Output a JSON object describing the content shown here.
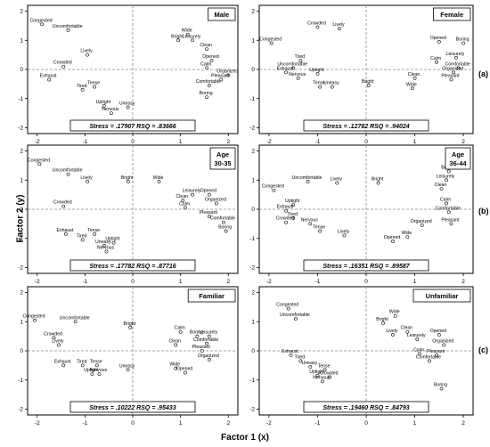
{
  "axes": {
    "xlabel": "Factor 1 (x)",
    "ylabel": "Factor 2 (y)"
  },
  "row_labels": [
    "(a)",
    "(b)",
    "(c)"
  ],
  "chart_data": [
    {
      "type": "scatter",
      "title": "Male",
      "stress_text": "Stress = .17907   RSQ = .83666",
      "xlim": [
        -2.2,
        2.2
      ],
      "ylim": [
        -2.2,
        2.2
      ],
      "xticks": [
        -2,
        -1,
        0,
        1,
        2
      ],
      "yticks": [
        -2,
        -1,
        0,
        1,
        2
      ],
      "points": [
        {
          "label": "Congested",
          "x": -1.9,
          "y": 1.55
        },
        {
          "label": "Uncomfortable",
          "x": -1.35,
          "y": 1.35
        },
        {
          "label": "Wide",
          "x": 1.15,
          "y": 1.2
        },
        {
          "label": "Leisurely",
          "x": 1.25,
          "y": 1.0
        },
        {
          "label": "Bright",
          "x": 0.95,
          "y": 1.0
        },
        {
          "label": "Clean",
          "x": 1.55,
          "y": 0.7
        },
        {
          "label": "Lively",
          "x": -0.95,
          "y": 0.5
        },
        {
          "label": "Opened",
          "x": 1.65,
          "y": 0.3
        },
        {
          "label": "Calm",
          "x": 1.55,
          "y": 0.05
        },
        {
          "label": "Crowded",
          "x": -1.45,
          "y": 0.1
        },
        {
          "label": "Organized",
          "x": 2.0,
          "y": -0.2
        },
        {
          "label": "Pleasant",
          "x": 1.85,
          "y": -0.35
        },
        {
          "label": "Exhaust",
          "x": -1.75,
          "y": -0.35
        },
        {
          "label": "Comfortable",
          "x": 1.6,
          "y": -0.55
        },
        {
          "label": "Tired",
          "x": -1.05,
          "y": -0.7
        },
        {
          "label": "Tense",
          "x": -0.8,
          "y": -0.6
        },
        {
          "label": "Boring",
          "x": 1.55,
          "y": -0.95
        },
        {
          "label": "Uptight",
          "x": -0.6,
          "y": -1.25
        },
        {
          "label": "Uneasy",
          "x": -0.1,
          "y": -1.3
        },
        {
          "label": "Nervous",
          "x": -0.45,
          "y": -1.5
        }
      ]
    },
    {
      "type": "scatter",
      "title": "Female",
      "stress_text": "Stress = .12782   RSQ = .94024",
      "xlim": [
        -2.2,
        2.2
      ],
      "ylim": [
        -2.2,
        2.2
      ],
      "xticks": [
        -2,
        -1,
        0,
        1,
        2
      ],
      "yticks": [
        -2,
        -1,
        0,
        1,
        2
      ],
      "points": [
        {
          "label": "Crowded",
          "x": -1.0,
          "y": 1.45
        },
        {
          "label": "Lively",
          "x": -0.55,
          "y": 1.4
        },
        {
          "label": "Congested",
          "x": -1.95,
          "y": 0.9
        },
        {
          "label": "Opened",
          "x": 1.5,
          "y": 0.95
        },
        {
          "label": "Boring",
          "x": 2.0,
          "y": 0.9
        },
        {
          "label": "Tired",
          "x": -1.35,
          "y": 0.3
        },
        {
          "label": "Uncomfortable",
          "x": -1.5,
          "y": 0.05
        },
        {
          "label": "Leisurely",
          "x": 1.85,
          "y": 0.4
        },
        {
          "label": "Calm",
          "x": 1.45,
          "y": 0.25
        },
        {
          "label": "Exhaust",
          "x": -1.65,
          "y": -0.1
        },
        {
          "label": "Uptight",
          "x": -1.0,
          "y": -0.15
        },
        {
          "label": "Comfortable",
          "x": 1.9,
          "y": 0.05
        },
        {
          "label": "Organized",
          "x": 1.8,
          "y": -0.1
        },
        {
          "label": "Nervous",
          "x": -1.4,
          "y": -0.3
        },
        {
          "label": "Clean",
          "x": 1.0,
          "y": -0.3
        },
        {
          "label": "Pleasant",
          "x": 1.75,
          "y": -0.35
        },
        {
          "label": "Bright",
          "x": 0.05,
          "y": -0.55
        },
        {
          "label": "Tense",
          "x": -0.95,
          "y": -0.6
        },
        {
          "label": "Uneasy",
          "x": -0.7,
          "y": -0.6
        },
        {
          "label": "Wide",
          "x": 0.95,
          "y": -0.65
        }
      ]
    },
    {
      "type": "scatter",
      "title": "Age\n30-35",
      "stress_text": "Stress = .17782   RSQ = .87716",
      "xlim": [
        -2.2,
        2.2
      ],
      "ylim": [
        -2.2,
        2.2
      ],
      "xticks": [
        -2,
        -1,
        0,
        1,
        2
      ],
      "yticks": [
        -2,
        -1,
        0,
        1,
        2
      ],
      "points": [
        {
          "label": "Congested",
          "x": -1.95,
          "y": 1.55
        },
        {
          "label": "Uncomfortable",
          "x": -1.35,
          "y": 1.2
        },
        {
          "label": "Lively",
          "x": -0.95,
          "y": 0.95
        },
        {
          "label": "Bright",
          "x": -0.1,
          "y": 0.95
        },
        {
          "label": "Wide",
          "x": 0.55,
          "y": 0.95
        },
        {
          "label": "Leisurely",
          "x": 1.25,
          "y": 0.5
        },
        {
          "label": "Opened",
          "x": 1.6,
          "y": 0.5
        },
        {
          "label": "Clean",
          "x": 1.05,
          "y": 0.3
        },
        {
          "label": "Organized",
          "x": 1.75,
          "y": 0.2
        },
        {
          "label": "Calm",
          "x": 1.1,
          "y": 0.05
        },
        {
          "label": "Crowded",
          "x": -1.45,
          "y": 0.1
        },
        {
          "label": "Pleasant",
          "x": 1.6,
          "y": -0.25
        },
        {
          "label": "Comfortable",
          "x": 1.9,
          "y": -0.45
        },
        {
          "label": "Boring",
          "x": 1.95,
          "y": -0.75
        },
        {
          "label": "Exhaust",
          "x": -1.4,
          "y": -0.85
        },
        {
          "label": "Tense",
          "x": -0.8,
          "y": -0.85
        },
        {
          "label": "Tired",
          "x": -1.05,
          "y": -1.05
        },
        {
          "label": "Uptight",
          "x": -0.4,
          "y": -1.15
        },
        {
          "label": "Uneasy",
          "x": -0.6,
          "y": -1.25
        },
        {
          "label": "Nervous",
          "x": -0.55,
          "y": -1.45
        }
      ]
    },
    {
      "type": "scatter",
      "title": "Age\n36-44",
      "stress_text": "Stress = .16351   RSQ = .89587",
      "xlim": [
        -2.2,
        2.2
      ],
      "ylim": [
        -2.2,
        2.2
      ],
      "xticks": [
        -2,
        -1,
        0,
        1,
        2
      ],
      "yticks": [
        -2,
        -1,
        0,
        1,
        2
      ],
      "points": [
        {
          "label": "Boring",
          "x": 1.7,
          "y": 1.3
        },
        {
          "label": "Uncomfortable",
          "x": -1.2,
          "y": 0.95
        },
        {
          "label": "Lively",
          "x": -0.6,
          "y": 0.9
        },
        {
          "label": "Bright",
          "x": 0.25,
          "y": 0.9
        },
        {
          "label": "Leisurely",
          "x": 1.65,
          "y": 1.0
        },
        {
          "label": "Clean",
          "x": 1.55,
          "y": 0.7
        },
        {
          "label": "Congested",
          "x": -1.9,
          "y": 0.65
        },
        {
          "label": "Calm",
          "x": 1.65,
          "y": 0.2
        },
        {
          "label": "Uptight",
          "x": -1.5,
          "y": 0.15
        },
        {
          "label": "Comfortable",
          "x": 1.7,
          "y": -0.1
        },
        {
          "label": "Exhaust",
          "x": -1.65,
          "y": -0.05
        },
        {
          "label": "Tired",
          "x": -1.5,
          "y": -0.3
        },
        {
          "label": "Crowded",
          "x": -1.65,
          "y": -0.45
        },
        {
          "label": "Nervous",
          "x": -1.15,
          "y": -0.5
        },
        {
          "label": "Organized",
          "x": 1.15,
          "y": -0.55
        },
        {
          "label": "Pleasant",
          "x": 1.75,
          "y": -0.5
        },
        {
          "label": "Tense",
          "x": -0.95,
          "y": -0.75
        },
        {
          "label": "Lively",
          "x": -0.45,
          "y": -0.9
        },
        {
          "label": "Wide",
          "x": 0.85,
          "y": -0.95
        },
        {
          "label": "Opened",
          "x": 0.55,
          "y": -1.1
        }
      ]
    },
    {
      "type": "scatter",
      "title": "Familiar",
      "stress_text": "Stress = .10222   RSQ = .95433",
      "xlim": [
        -2.2,
        2.2
      ],
      "ylim": [
        -2.2,
        2.2
      ],
      "xticks": [
        -2,
        -1,
        0,
        1,
        2
      ],
      "yticks": [
        -2,
        -1,
        0,
        1,
        2
      ],
      "points": [
        {
          "label": "Congested",
          "x": -2.05,
          "y": 1.05
        },
        {
          "label": "Uncomfortable",
          "x": -1.2,
          "y": 1.0
        },
        {
          "label": "Bright",
          "x": -0.05,
          "y": 0.8
        },
        {
          "label": "Calm",
          "x": 1.0,
          "y": 0.65
        },
        {
          "label": "Boring",
          "x": 1.35,
          "y": 0.5
        },
        {
          "label": "Leisurely",
          "x": 1.6,
          "y": 0.5
        },
        {
          "label": "Crowded",
          "x": -1.65,
          "y": 0.45
        },
        {
          "label": "Lively",
          "x": -1.55,
          "y": 0.2
        },
        {
          "label": "Clean",
          "x": 0.9,
          "y": 0.2
        },
        {
          "label": "Comfortable",
          "x": 1.55,
          "y": 0.25
        },
        {
          "label": "Pleasant",
          "x": 1.45,
          "y": 0.0
        },
        {
          "label": "Organized",
          "x": 1.6,
          "y": -0.3
        },
        {
          "label": "Exhaust",
          "x": -1.45,
          "y": -0.5
        },
        {
          "label": "Tired",
          "x": -1.05,
          "y": -0.5
        },
        {
          "label": "Tense",
          "x": -0.75,
          "y": -0.5
        },
        {
          "label": "Uneasy",
          "x": -0.1,
          "y": -0.65
        },
        {
          "label": "Wide",
          "x": 0.9,
          "y": -0.6
        },
        {
          "label": "Uptight",
          "x": -0.85,
          "y": -0.8
        },
        {
          "label": "Nervous",
          "x": -0.7,
          "y": -0.8
        },
        {
          "label": "Opened",
          "x": 1.1,
          "y": -0.75
        }
      ]
    },
    {
      "type": "scatter",
      "title": "Unfamiliar",
      "stress_text": "Stress = .19460   RSQ = .84793",
      "xlim": [
        -2.2,
        2.2
      ],
      "ylim": [
        -2.2,
        2.2
      ],
      "xticks": [
        -2,
        -1,
        0,
        1,
        2
      ],
      "yticks": [
        -2,
        -1,
        0,
        1,
        2
      ],
      "points": [
        {
          "label": "Congested",
          "x": -1.6,
          "y": 1.45
        },
        {
          "label": "Uncomfortable",
          "x": -1.45,
          "y": 1.1
        },
        {
          "label": "Wide",
          "x": 0.6,
          "y": 1.2
        },
        {
          "label": "Bright",
          "x": 0.35,
          "y": 0.95
        },
        {
          "label": "Clean",
          "x": 0.85,
          "y": 0.65
        },
        {
          "label": "Lively",
          "x": 0.55,
          "y": 0.55
        },
        {
          "label": "Opened",
          "x": 1.5,
          "y": 0.55
        },
        {
          "label": "Leisurely",
          "x": 1.05,
          "y": 0.4
        },
        {
          "label": "Organized",
          "x": 1.6,
          "y": 0.2
        },
        {
          "label": "Exhaust",
          "x": -1.55,
          "y": -0.15
        },
        {
          "label": "Calm",
          "x": 1.1,
          "y": -0.1
        },
        {
          "label": "Pleasant",
          "x": 1.45,
          "y": -0.15
        },
        {
          "label": "Tired",
          "x": -1.35,
          "y": -0.35
        },
        {
          "label": "Comfortable",
          "x": 1.3,
          "y": -0.35
        },
        {
          "label": "Uneasy",
          "x": -1.15,
          "y": -0.55
        },
        {
          "label": "Tense",
          "x": -0.85,
          "y": -0.65
        },
        {
          "label": "Uptight",
          "x": -1.0,
          "y": -0.85
        },
        {
          "label": "Crowded",
          "x": -0.75,
          "y": -0.9
        },
        {
          "label": "Nervous",
          "x": -0.9,
          "y": -1.05
        },
        {
          "label": "Boring",
          "x": 1.55,
          "y": -1.3
        }
      ]
    }
  ]
}
